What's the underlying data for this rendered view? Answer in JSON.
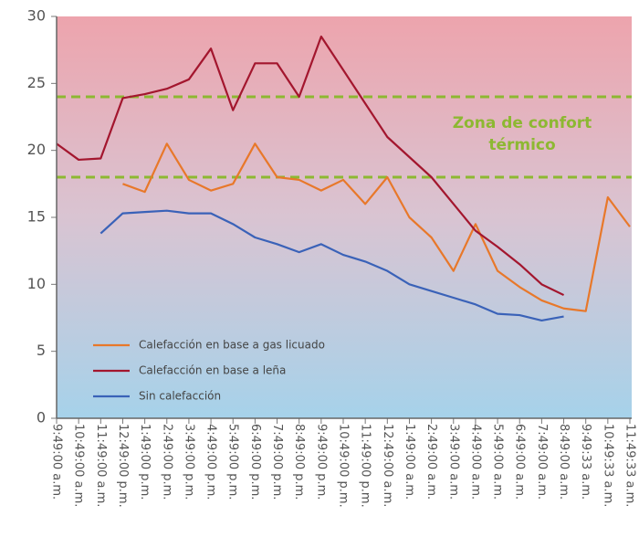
{
  "chart_data": {
    "type": "line",
    "categories": [
      "9:49:00 a.m.",
      "10:49:00 a.m.",
      "11:49:00 a.m.",
      "12:49:00 p.m.",
      "1:49:00 p.m.",
      "2:49:00 p.m.",
      "3:49:00 p.m.",
      "4:49:00 p.m.",
      "5:49:00 p.m.",
      "6:49:00 p.m.",
      "7:49:00 p.m.",
      "8:49:00 p.m.",
      "9:49:00 p.m.",
      "10:49:00 p.m.",
      "11:49:00 p.m.",
      "12:49:00 a.m.",
      "1:49:00 a.m.",
      "2:49:00 a.m.",
      "3:49:00 a.m.",
      "4:49:00 a.m.",
      "5:49:00 a.m.",
      "6:49:00 a.m.",
      "7:49:00 a.m.",
      "8:49:00 a.m.",
      "9:49:33 a.m.",
      "10:49:33 a.m.",
      "11:49:33 a.m."
    ],
    "series": [
      {
        "name": "Calefacción en base a gas licuado",
        "color": "#e8782a",
        "values": [
          null,
          null,
          null,
          17.5,
          16.9,
          20.5,
          17.8,
          17,
          17.5,
          20.5,
          18,
          17.8,
          17,
          17.8,
          16,
          18,
          15,
          13.5,
          11,
          14.5,
          11,
          9.8,
          8.8,
          8.2,
          8,
          16.5,
          14.3
        ]
      },
      {
        "name": "Calefacción en base a leña",
        "color": "#a3162e",
        "values": [
          20.5,
          19.3,
          19.4,
          23.9,
          24.2,
          24.6,
          25.3,
          27.6,
          23,
          26.5,
          26.5,
          24,
          28.5,
          26,
          23.5,
          21,
          19.5,
          18,
          16,
          14,
          12.8,
          11.5,
          10,
          9.2,
          null,
          null,
          null
        ]
      },
      {
        "name": "Sin calefacción",
        "color": "#3a62b8",
        "values": [
          null,
          null,
          13.8,
          15.3,
          15.4,
          15.5,
          15.3,
          15.3,
          14.5,
          13.5,
          13,
          12.4,
          13,
          12.2,
          11.7,
          11,
          10,
          9.5,
          9,
          8.5,
          7.8,
          7.7,
          7.3,
          7.6,
          null,
          null,
          null
        ]
      }
    ],
    "ylim": [
      0,
      30
    ],
    "yticks": [
      0,
      5,
      10,
      15,
      20,
      25,
      30
    ],
    "comfort_band": [
      18,
      24
    ],
    "comfort_color": "#8db832",
    "annotation": [
      "Zona de confort",
      "térmico"
    ],
    "legend": "lower left"
  }
}
